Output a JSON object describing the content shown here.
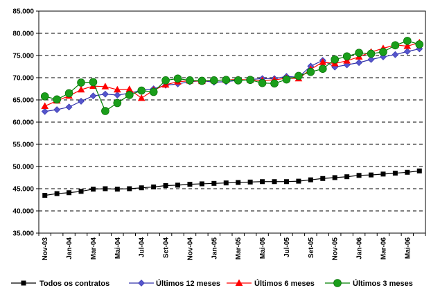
{
  "chart_data": {
    "type": "line",
    "title": "",
    "xlabel": "",
    "ylabel": "",
    "ylim": [
      35000,
      85000
    ],
    "yticks": [
      35000,
      40000,
      45000,
      50000,
      55000,
      60000,
      65000,
      70000,
      75000,
      80000,
      85000
    ],
    "ytick_labels": [
      "35.000",
      "40.000",
      "45.000",
      "50.000",
      "55.000",
      "60.000",
      "65.000",
      "70.000",
      "75.000",
      "80.000",
      "85.000"
    ],
    "grid": "horizontal dashed",
    "legend_position": "bottom",
    "x": [
      "Nov-03",
      "Dez-03",
      "Jan-04",
      "Fev-04",
      "Mar-04",
      "Abr-04",
      "Mai-04",
      "Jun-04",
      "Jul-04",
      "Ago-04",
      "Set-04",
      "Out-04",
      "Nov-04",
      "Dez-04",
      "Jan-05",
      "Fev-05",
      "Mar-05",
      "Abr-05",
      "Mai-05",
      "Jun-05",
      "Jul-05",
      "Ago-05",
      "Set-05",
      "Out-05",
      "Nov-05",
      "Dez-05",
      "Jan-06",
      "Fev-06",
      "Mar-06",
      "Abr-06",
      "Mai-06",
      "Jun-06"
    ],
    "x_tick_labels": [
      "Nov-03",
      "",
      "Jan-04",
      "",
      "Mar-04",
      "",
      "Mai-04",
      "",
      "Jul-04",
      "",
      "Set-04",
      "",
      "Nov-04",
      "",
      "Jan-05",
      "",
      "Mar-05",
      "",
      "Mai-05",
      "",
      "Jul-05",
      "",
      "Set-05",
      "",
      "Nov-05",
      "",
      "Jan-06",
      "",
      "Mar-06",
      "",
      "Mai-06",
      ""
    ],
    "series": [
      {
        "name": "Todos os contratos",
        "color": "#000000",
        "marker": "square",
        "values": [
          43500,
          43900,
          44100,
          44400,
          44900,
          45000,
          44900,
          45000,
          45200,
          45400,
          45700,
          45800,
          46000,
          46100,
          46200,
          46300,
          46400,
          46500,
          46600,
          46600,
          46600,
          46700,
          47000,
          47300,
          47500,
          47700,
          48000,
          48100,
          48300,
          48500,
          48700,
          49000
        ]
      },
      {
        "name": "Últimos 12 meses",
        "color": "#3333aa",
        "marker": "diamond",
        "values": [
          62400,
          62800,
          63400,
          64700,
          65900,
          66300,
          66100,
          66500,
          67200,
          67500,
          68300,
          68600,
          69100,
          69300,
          69000,
          69100,
          69400,
          69600,
          69800,
          69800,
          70300,
          70100,
          72600,
          73900,
          72400,
          72900,
          73400,
          74100,
          74700,
          75200,
          75900,
          76500
        ]
      },
      {
        "name": "Últimos 6 meses",
        "color": "#ff0000",
        "marker": "triangle",
        "values": [
          63600,
          64800,
          65900,
          67300,
          68100,
          68000,
          67300,
          67400,
          65400,
          67200,
          68400,
          69100,
          69300,
          69200,
          69400,
          69500,
          69600,
          69500,
          69400,
          69500,
          69900,
          69800,
          71900,
          73500,
          73200,
          73800,
          74700,
          75800,
          76600,
          77400,
          77100,
          77900
        ]
      },
      {
        "name": "Últimos 3 meses",
        "color": "#008000",
        "marker": "circle",
        "values": [
          65800,
          65100,
          66500,
          68900,
          69000,
          62500,
          64300,
          66100,
          67100,
          66800,
          69400,
          69800,
          69400,
          69300,
          69400,
          69500,
          69400,
          69500,
          68800,
          68700,
          69600,
          70400,
          71300,
          72000,
          74100,
          74800,
          75600,
          75400,
          75800,
          77300,
          78300,
          77500
        ]
      }
    ]
  }
}
